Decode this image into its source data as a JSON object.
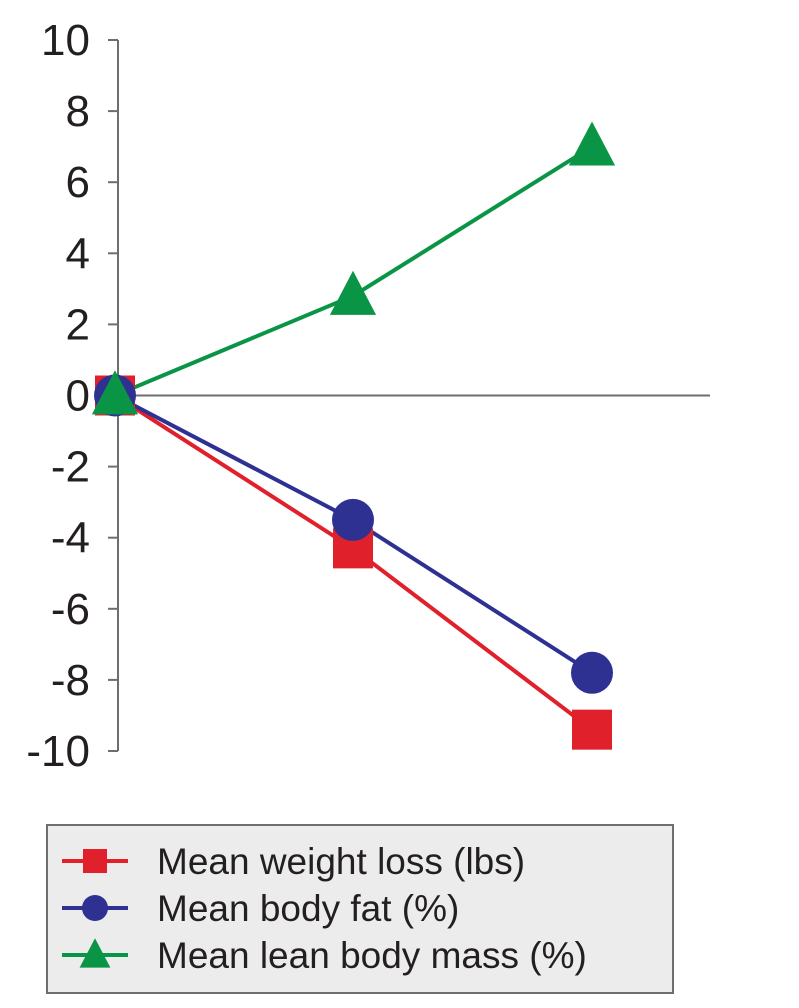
{
  "chart_data": {
    "type": "line",
    "title": "",
    "xlabel": "",
    "ylabel": "",
    "x": [
      0,
      1,
      2
    ],
    "ylim": [
      -10,
      10
    ],
    "yticks": [
      10,
      8,
      6,
      4,
      2,
      0,
      -2,
      -4,
      -6,
      -8,
      -10
    ],
    "ytick_labels": [
      "10",
      "8",
      "6",
      "4",
      "2",
      "0",
      "-2",
      "-4",
      "-6",
      "-8",
      "-10"
    ],
    "grid": false,
    "legend_position": "bottom",
    "series": [
      {
        "name": "Mean weight loss (lbs)",
        "marker": "square",
        "color": "#e0202a",
        "values": [
          0,
          -4.3,
          -9.4
        ]
      },
      {
        "name": "Mean body fat (%)",
        "marker": "circle",
        "color": "#2e3192",
        "values": [
          0,
          -3.5,
          -7.8
        ]
      },
      {
        "name": "Mean lean body mass (%)",
        "marker": "triangle",
        "color": "#0a9546",
        "values": [
          0,
          2.8,
          7.0
        ]
      }
    ]
  }
}
